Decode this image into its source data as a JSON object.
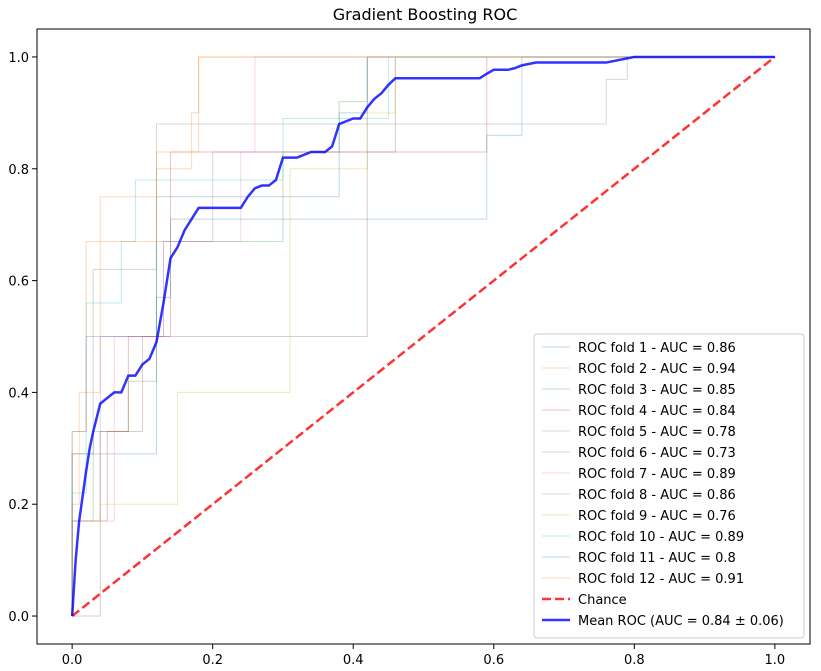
{
  "chart_data": {
    "type": "line",
    "title": "Gradient Boosting ROC",
    "xlabel": "",
    "ylabel": "",
    "xlim": [
      -0.05,
      1.05
    ],
    "ylim": [
      -0.05,
      1.05
    ],
    "x_ticks": [
      0.0,
      0.2,
      0.4,
      0.6,
      0.8,
      1.0
    ],
    "y_ticks": [
      0.0,
      0.2,
      0.4,
      0.6,
      0.8,
      1.0
    ],
    "x_tick_labels": [
      "0.0",
      "0.2",
      "0.4",
      "0.6",
      "0.8",
      "1.0"
    ],
    "y_tick_labels": [
      "0.0",
      "0.2",
      "0.4",
      "0.6",
      "0.8",
      "1.0"
    ],
    "grid": false,
    "legend_position": "lower-right",
    "series": [
      {
        "name": "ROC fold 1 - AUC = 0.86",
        "color": "#1f77b4",
        "style": "solid-thin",
        "x": [
          0,
          0,
          0.02,
          0.02,
          0.12,
          0.12,
          0.38,
          0.38,
          0.42,
          0.42,
          0.6,
          0.6,
          1
        ],
        "y": [
          0,
          0.33,
          0.33,
          0.5,
          0.5,
          0.75,
          0.75,
          0.9,
          0.9,
          1,
          1,
          1,
          1
        ]
      },
      {
        "name": "ROC fold 2 - AUC = 0.94",
        "color": "#ff7f0e",
        "style": "solid-thin",
        "x": [
          0,
          0,
          0.01,
          0.01,
          0.04,
          0.04,
          0.12,
          0.12,
          0.17,
          0.17,
          0.18,
          0.18,
          1
        ],
        "y": [
          0,
          0.2,
          0.2,
          0.4,
          0.4,
          0.75,
          0.75,
          0.8,
          0.8,
          0.9,
          0.9,
          1,
          1
        ]
      },
      {
        "name": "ROC fold 3 - AUC = 0.85",
        "color": "#2ca02c",
        "style": "solid-thin",
        "x": [
          0,
          0,
          0.03,
          0.03,
          0.08,
          0.08,
          0.12,
          0.12,
          0.3,
          0.3,
          0.38,
          0.38,
          0.42,
          0.42,
          1
        ],
        "y": [
          0,
          0.17,
          0.17,
          0.33,
          0.33,
          0.42,
          0.42,
          0.67,
          0.67,
          0.83,
          0.83,
          0.92,
          0.92,
          1,
          1
        ]
      },
      {
        "name": "ROC fold 4 - AUC = 0.84",
        "color": "#d62728",
        "style": "solid-thin",
        "x": [
          0,
          0,
          0.05,
          0.05,
          0.08,
          0.08,
          0.14,
          0.14,
          0.46,
          0.46,
          0.59,
          0.59,
          1
        ],
        "y": [
          0,
          0.17,
          0.17,
          0.33,
          0.33,
          0.5,
          0.5,
          0.83,
          0.83,
          0.83,
          0.83,
          1,
          1
        ]
      },
      {
        "name": "ROC fold 5 - AUC = 0.78",
        "color": "#9467bd",
        "style": "solid-thin",
        "x": [
          0,
          0,
          0.04,
          0.04,
          0.13,
          0.13,
          0.2,
          0.2,
          0.42,
          0.42,
          1
        ],
        "y": [
          0,
          0.17,
          0.17,
          0.5,
          0.5,
          0.67,
          0.67,
          0.83,
          0.83,
          1,
          1
        ]
      },
      {
        "name": "ROC fold 6 - AUC = 0.73",
        "color": "#8c564b",
        "style": "solid-thin",
        "x": [
          0,
          0.04,
          0.04,
          0.1,
          0.1,
          0.13,
          0.13,
          0.42,
          0.42,
          0.46,
          0.46,
          1
        ],
        "y": [
          0,
          0,
          0.33,
          0.33,
          0.5,
          0.5,
          0.5,
          0.5,
          0.83,
          0.83,
          1,
          1
        ]
      },
      {
        "name": "ROC fold 7 - AUC = 0.89",
        "color": "#e377c2",
        "style": "solid-thin",
        "x": [
          0,
          0,
          0.06,
          0.06,
          0.13,
          0.13,
          0.24,
          0.24,
          0.26,
          0.26,
          1
        ],
        "y": [
          0,
          0.17,
          0.17,
          0.5,
          0.5,
          0.67,
          0.67,
          0.83,
          0.83,
          1,
          1
        ]
      },
      {
        "name": "ROC fold 8 - AUC = 0.86",
        "color": "#7f7f7f",
        "style": "solid-thin",
        "x": [
          0,
          0,
          0.03,
          0.03,
          0.12,
          0.12,
          0.22,
          0.22,
          0.76,
          0.76,
          0.79,
          0.79,
          1
        ],
        "y": [
          0,
          0.29,
          0.29,
          0.62,
          0.62,
          0.88,
          0.88,
          0.88,
          0.88,
          0.96,
          0.96,
          1,
          1
        ]
      },
      {
        "name": "ROC fold 9 - AUC = 0.76",
        "color": "#bcbd22",
        "style": "solid-thin",
        "x": [
          0,
          0,
          0.04,
          0.04,
          0.15,
          0.15,
          0.31,
          0.31,
          0.42,
          0.42,
          0.46,
          0.46,
          1
        ],
        "y": [
          0,
          0.17,
          0.17,
          0.2,
          0.2,
          0.4,
          0.4,
          0.8,
          0.8,
          0.9,
          0.9,
          1,
          1
        ]
      },
      {
        "name": "ROC fold 10 - AUC = 0.89",
        "color": "#17becf",
        "style": "solid-thin",
        "x": [
          0,
          0,
          0.02,
          0.02,
          0.07,
          0.07,
          0.09,
          0.09,
          0.3,
          0.3,
          0.45,
          0.45,
          1
        ],
        "y": [
          0,
          0.22,
          0.22,
          0.56,
          0.56,
          0.67,
          0.67,
          0.78,
          0.78,
          0.89,
          0.89,
          1,
          1
        ]
      },
      {
        "name": "ROC fold 11 - AUC = 0.8",
        "color": "#1f77b4",
        "style": "solid-thin",
        "x": [
          0,
          0,
          0.12,
          0.12,
          0.14,
          0.14,
          0.26,
          0.26,
          0.59,
          0.59,
          0.64,
          0.64,
          1
        ],
        "y": [
          0,
          0.29,
          0.29,
          0.57,
          0.57,
          0.71,
          0.71,
          0.71,
          0.71,
          0.86,
          0.86,
          1,
          1
        ]
      },
      {
        "name": "ROC fold 12 - AUC = 0.91",
        "color": "#ff7f0e",
        "style": "solid-thin",
        "x": [
          0,
          0,
          0.02,
          0.02,
          0.12,
          0.12,
          0.18,
          0.18,
          1
        ],
        "y": [
          0,
          0.33,
          0.33,
          0.67,
          0.67,
          0.83,
          0.83,
          1,
          1
        ]
      },
      {
        "name": "Chance",
        "color": "#ff0000",
        "style": "dashed",
        "x": [
          0,
          1
        ],
        "y": [
          0,
          1
        ]
      },
      {
        "name": "Mean ROC (AUC = 0.84 ± 0.06)",
        "color": "#0000ff",
        "style": "solid-thick",
        "x": [
          0,
          0.005,
          0.01,
          0.02,
          0.025,
          0.03,
          0.04,
          0.05,
          0.06,
          0.07,
          0.08,
          0.09,
          0.1,
          0.11,
          0.12,
          0.13,
          0.14,
          0.15,
          0.16,
          0.17,
          0.18,
          0.2,
          0.22,
          0.24,
          0.25,
          0.26,
          0.27,
          0.28,
          0.29,
          0.3,
          0.31,
          0.32,
          0.33,
          0.34,
          0.35,
          0.36,
          0.37,
          0.38,
          0.39,
          0.4,
          0.41,
          0.42,
          0.43,
          0.44,
          0.45,
          0.46,
          0.48,
          0.5,
          0.52,
          0.54,
          0.56,
          0.58,
          0.59,
          0.6,
          0.62,
          0.63,
          0.64,
          0.66,
          0.7,
          0.74,
          0.76,
          0.78,
          0.8,
          0.85,
          0.9,
          0.95,
          1
        ],
        "y": [
          0,
          0.1,
          0.17,
          0.26,
          0.3,
          0.33,
          0.38,
          0.39,
          0.4,
          0.4,
          0.43,
          0.43,
          0.45,
          0.46,
          0.49,
          0.56,
          0.64,
          0.66,
          0.69,
          0.71,
          0.73,
          0.73,
          0.73,
          0.73,
          0.75,
          0.765,
          0.77,
          0.77,
          0.78,
          0.82,
          0.82,
          0.82,
          0.825,
          0.83,
          0.83,
          0.83,
          0.84,
          0.88,
          0.885,
          0.89,
          0.89,
          0.91,
          0.925,
          0.935,
          0.95,
          0.962,
          0.962,
          0.962,
          0.962,
          0.962,
          0.962,
          0.962,
          0.97,
          0.977,
          0.977,
          0.98,
          0.985,
          0.99,
          0.99,
          0.99,
          0.99,
          0.995,
          1,
          1,
          1,
          1,
          1
        ]
      }
    ]
  }
}
